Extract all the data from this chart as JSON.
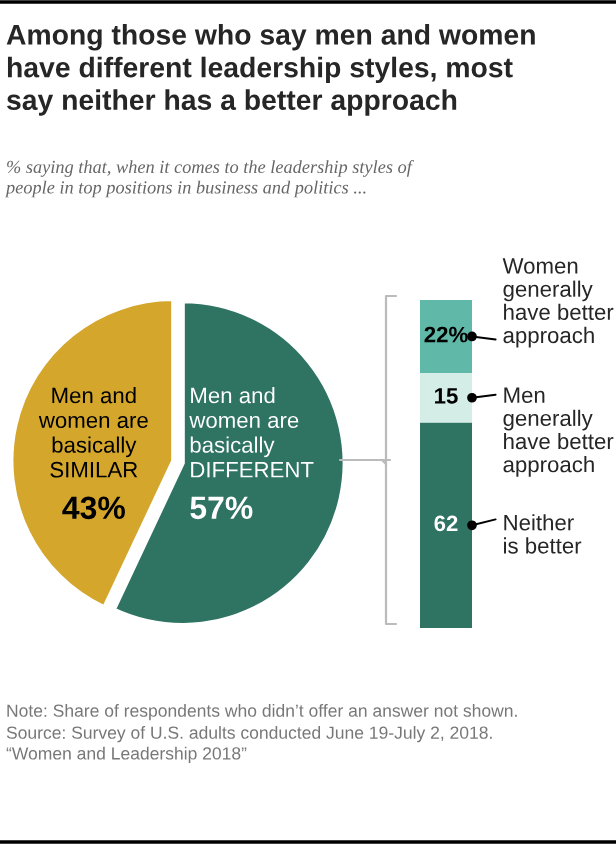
{
  "chart_data": [
    {
      "type": "pie",
      "title": "Among those who say men and women\nhave different leadership styles, most\nsay neither has a better approach",
      "subtitle": "% saying that, when it comes to the leadership styles of\npeople in top positions in business and politics ...",
      "categories": [
        "Men and\nwomen are\nbasically\nSIMILAR",
        "Men and\nwomen are\nbasically\nDIFFERENT"
      ],
      "values": [
        43,
        57
      ],
      "colors": [
        "#d4a72c",
        "#2f7363"
      ],
      "value_labels": [
        "43%",
        "57%"
      ],
      "annotations": [
        "Note: Share of respondents who didn’t offer an answer not shown.",
        "Source: Survey of U.S. adults conducted June 19-July 2, 2018.\n“Women and Leadership 2018”"
      ]
    },
    {
      "type": "bar",
      "stacked": true,
      "categories": [
        null
      ],
      "series": [
        {
          "name": "Neither\nis better",
          "color": "#2f7363",
          "values": [
            62
          ],
          "value_labels": [
            "62"
          ]
        },
        {
          "name": "Men\ngenerally\nhave better\napproach",
          "color": "#d4ede7",
          "values": [
            15
          ],
          "value_labels": [
            "15"
          ]
        },
        {
          "name": "Women\ngenerally\nhave better\napproach",
          "color": "#5fb8a8",
          "values": [
            22
          ],
          "value_labels": [
            "22%"
          ]
        }
      ]
    }
  ]
}
